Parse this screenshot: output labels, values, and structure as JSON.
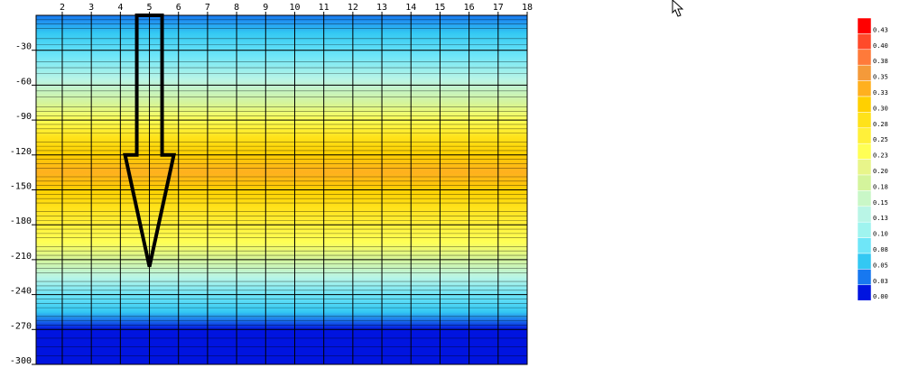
{
  "chart_data": {
    "type": "heatmap",
    "title": "",
    "xlabel": "",
    "ylabel": "",
    "x_ticks": [
      2,
      3,
      4,
      5,
      6,
      7,
      8,
      9,
      10,
      11,
      12,
      13,
      14,
      15,
      16,
      17,
      18
    ],
    "x_range": [
      1.1,
      18
    ],
    "y_ticks": [
      -30,
      -60,
      -90,
      -120,
      -150,
      -180,
      -210,
      -240,
      -270,
      -300
    ],
    "y_range": [
      0,
      -300
    ],
    "grid": true,
    "colorbar": {
      "position": "right",
      "levels": [
        "0.43",
        "0.40",
        "0.38",
        "0.35",
        "0.33",
        "0.30",
        "0.28",
        "0.25",
        "0.23",
        "0.20",
        "0.18",
        "0.15",
        "0.13",
        "0.10",
        "0.08",
        "0.05",
        "0.03",
        "0.00"
      ],
      "colors": [
        "#ff0000",
        "#ff4a2a",
        "#ff7a3a",
        "#f49a3a",
        "#ffb01f",
        "#ffd000",
        "#ffe21a",
        "#fff03a",
        "#ffff55",
        "#e8f58a",
        "#d4f49c",
        "#c9f7c7",
        "#b9f5e6",
        "#9ff4ef",
        "#6fe6f8",
        "#33c8f3",
        "#1778f0",
        "#0014e0"
      ]
    },
    "depth_profile": [
      {
        "depth": 0,
        "value": 0.03
      },
      {
        "depth": -15,
        "value": 0.05
      },
      {
        "depth": -35,
        "value": 0.08
      },
      {
        "depth": -55,
        "value": 0.12
      },
      {
        "depth": -75,
        "value": 0.17
      },
      {
        "depth": -90,
        "value": 0.24
      },
      {
        "depth": -105,
        "value": 0.29
      },
      {
        "depth": -120,
        "value": 0.31
      },
      {
        "depth": -135,
        "value": 0.32
      },
      {
        "depth": -150,
        "value": 0.31
      },
      {
        "depth": -165,
        "value": 0.29
      },
      {
        "depth": -180,
        "value": 0.26
      },
      {
        "depth": -195,
        "value": 0.22
      },
      {
        "depth": -210,
        "value": 0.17
      },
      {
        "depth": -225,
        "value": 0.12
      },
      {
        "depth": -240,
        "value": 0.08
      },
      {
        "depth": -255,
        "value": 0.04
      },
      {
        "depth": -270,
        "value": 0.0
      },
      {
        "depth": -300,
        "value": 0.0
      }
    ],
    "annotations": [
      {
        "type": "arrow",
        "x": 5,
        "from_depth": 0,
        "to_depth": -216,
        "color": "#000000"
      }
    ]
  },
  "cursor": {
    "icon": "mouse-pointer-icon"
  }
}
